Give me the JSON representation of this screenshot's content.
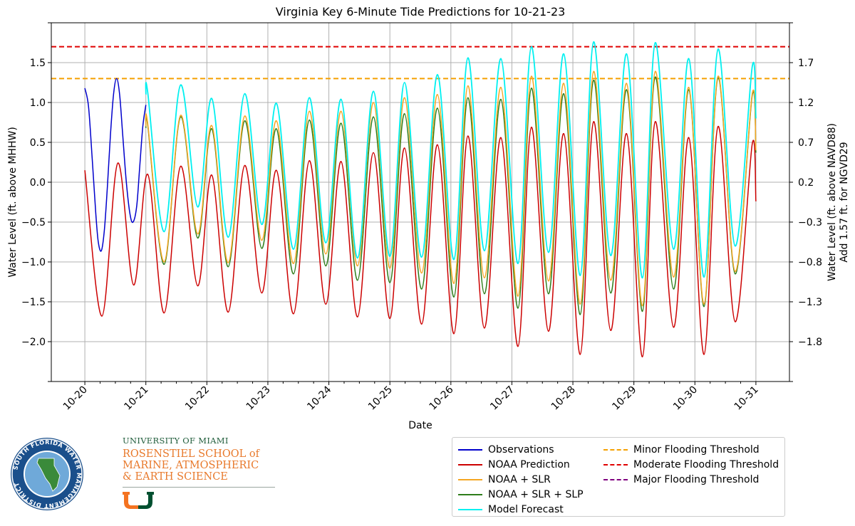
{
  "chart_data": {
    "type": "line",
    "title": "Virginia Key 6-Minute Tide Predictions for 10-21-23",
    "xlabel": "Date",
    "ylabel": "Water Level (ft. above MHHW)",
    "ylabel_right_line1": "Water Level (ft. above NAVD88)",
    "ylabel_right_line2": "Add 1.57 ft. for NGVD29",
    "x_tick_labels": [
      "10-20",
      "10-21",
      "10-22",
      "10-23",
      "10-24",
      "10-25",
      "10-26",
      "10-27",
      "10-28",
      "10-29",
      "10-30",
      "10-31"
    ],
    "xlim_days": [
      -0.55,
      11.55
    ],
    "ylim": [
      -2.5,
      2.0
    ],
    "y_ticks": [
      -2.0,
      -1.5,
      -1.0,
      -0.5,
      0.0,
      0.5,
      1.0,
      1.5
    ],
    "y_tick_labels": [
      "−2.0",
      "−1.5",
      "−1.0",
      "−0.5",
      "0.0",
      "0.5",
      "1.0",
      "1.5"
    ],
    "y_ticks_right": [
      -1.8,
      -1.3,
      -0.8,
      -0.3,
      0.2,
      0.7,
      1.2,
      1.7
    ],
    "grid": true,
    "legend_placement": "below-right",
    "series": [
      {
        "name": "Observations",
        "color": "#0000cc",
        "style": "solid",
        "x": [
          0.0,
          0.06,
          0.12,
          0.18,
          0.22,
          0.27,
          0.32,
          0.37,
          0.42,
          0.47,
          0.52,
          0.57,
          0.62,
          0.68,
          0.74,
          0.79,
          0.85,
          0.9,
          0.95,
          1.0
        ],
        "y": [
          1.18,
          0.95,
          0.3,
          -0.4,
          -0.75,
          -0.86,
          -0.6,
          -0.05,
          0.6,
          1.1,
          1.3,
          1.1,
          0.6,
          0.0,
          -0.4,
          -0.5,
          -0.3,
          0.2,
          0.7,
          0.97
        ]
      },
      {
        "name": "NOAA Prediction",
        "color": "#cc0000",
        "style": "solid",
        "x": [
          0.0,
          0.28,
          0.54,
          0.8,
          1.03,
          1.3,
          1.57,
          1.85,
          2.08,
          2.35,
          2.62,
          2.9,
          3.14,
          3.42,
          3.68,
          3.95,
          4.2,
          4.47,
          4.73,
          5.0,
          5.24,
          5.52,
          5.78,
          6.05,
          6.28,
          6.55,
          6.82,
          7.1,
          7.32,
          7.6,
          7.85,
          8.12,
          8.34,
          8.62,
          8.88,
          9.14,
          9.35,
          9.65,
          9.9,
          10.15,
          10.38,
          10.66,
          10.94,
          11.0
        ],
        "y": [
          0.15,
          -1.68,
          0.24,
          -1.29,
          0.1,
          -1.64,
          0.2,
          -1.3,
          0.09,
          -1.63,
          0.21,
          -1.39,
          0.15,
          -1.65,
          0.27,
          -1.53,
          0.26,
          -1.69,
          0.37,
          -1.71,
          0.43,
          -1.78,
          0.47,
          -1.9,
          0.58,
          -1.83,
          0.56,
          -2.06,
          0.69,
          -1.87,
          0.61,
          -2.16,
          0.76,
          -1.86,
          0.61,
          -2.19,
          0.76,
          -1.82,
          0.56,
          -2.16,
          0.7,
          -1.75,
          0.48,
          -0.24
        ]
      },
      {
        "name": "NOAA + SLR",
        "color": "#f5a623",
        "style": "solid",
        "x": [
          1.0,
          1.03,
          1.3,
          1.57,
          1.85,
          2.08,
          2.35,
          2.62,
          2.9,
          3.14,
          3.42,
          3.68,
          3.95,
          4.2,
          4.47,
          4.73,
          5.0,
          5.24,
          5.52,
          5.78,
          6.05,
          6.28,
          6.55,
          6.82,
          7.1,
          7.32,
          7.6,
          7.85,
          8.12,
          8.34,
          8.62,
          8.88,
          9.14,
          9.35,
          9.65,
          9.9,
          10.15,
          10.38,
          10.66,
          10.94,
          11.0
        ],
        "y": [
          0.7,
          0.74,
          -1.0,
          0.84,
          -0.65,
          0.71,
          -1.01,
          0.83,
          -0.73,
          0.77,
          -1.02,
          0.89,
          -0.9,
          0.89,
          -1.05,
          1.0,
          -1.08,
          1.06,
          -1.14,
          1.1,
          -1.27,
          1.21,
          -1.2,
          1.19,
          -1.43,
          1.33,
          -1.24,
          1.24,
          -1.53,
          1.39,
          -1.23,
          1.24,
          -1.55,
          1.39,
          -1.19,
          1.19,
          -1.53,
          1.33,
          -1.12,
          1.11,
          0.4
        ]
      },
      {
        "name": "NOAA + SLR + SLP",
        "color": "#2e7d1a",
        "style": "solid",
        "x": [
          1.0,
          1.03,
          1.3,
          1.57,
          1.85,
          2.08,
          2.35,
          2.62,
          2.9,
          3.14,
          3.42,
          3.68,
          3.95,
          4.2,
          4.47,
          4.73,
          5.0,
          5.24,
          5.52,
          5.78,
          6.05,
          6.28,
          6.55,
          6.82,
          7.1,
          7.32,
          7.6,
          7.85,
          8.12,
          8.34,
          8.62,
          8.88,
          9.14,
          9.35,
          9.65,
          9.9,
          10.15,
          10.38,
          10.66,
          10.94,
          11.0
        ],
        "y": [
          0.68,
          0.72,
          -1.03,
          0.82,
          -0.7,
          0.67,
          -1.06,
          0.77,
          -0.83,
          0.67,
          -1.15,
          0.78,
          -1.05,
          0.74,
          -1.23,
          0.82,
          -1.26,
          0.86,
          -1.34,
          0.93,
          -1.44,
          1.06,
          -1.4,
          1.04,
          -1.58,
          1.18,
          -1.4,
          1.11,
          -1.66,
          1.28,
          -1.39,
          1.16,
          -1.62,
          1.32,
          -1.34,
          1.16,
          -1.56,
          1.31,
          -1.15,
          1.09,
          0.37
        ]
      },
      {
        "name": "Model Forecast",
        "color": "#00f0f0",
        "style": "solid",
        "x": [
          1.0,
          1.03,
          1.3,
          1.57,
          1.85,
          2.08,
          2.35,
          2.62,
          2.9,
          3.14,
          3.42,
          3.68,
          3.95,
          4.2,
          4.47,
          4.73,
          5.0,
          5.24,
          5.52,
          5.78,
          6.05,
          6.28,
          6.55,
          6.82,
          7.1,
          7.32,
          7.6,
          7.85,
          8.12,
          8.34,
          8.62,
          8.88,
          9.14,
          9.35,
          9.65,
          9.9,
          10.15,
          10.38,
          10.66,
          10.94,
          11.0
        ],
        "y": [
          1.1,
          1.13,
          -0.62,
          1.22,
          -0.31,
          1.05,
          -0.69,
          1.11,
          -0.53,
          0.99,
          -0.84,
          1.06,
          -0.76,
          1.04,
          -0.95,
          1.14,
          -0.93,
          1.25,
          -0.94,
          1.35,
          -0.97,
          1.56,
          -0.86,
          1.55,
          -1.02,
          1.7,
          -0.88,
          1.61,
          -1.17,
          1.76,
          -0.92,
          1.61,
          -1.2,
          1.75,
          -0.84,
          1.55,
          -1.19,
          1.67,
          -0.8,
          1.45,
          0.8
        ]
      },
      {
        "name": "Minor Flooding Threshold",
        "color": "#f5a000",
        "style": "dashed",
        "y_const": 1.3
      },
      {
        "name": "Moderate Flooding Threshold",
        "color": "#e00000",
        "style": "dashed",
        "y_const": 1.7
      },
      {
        "name": "Major Flooding Threshold",
        "color": "#800080",
        "style": "dashed"
      }
    ]
  },
  "logos": {
    "sfwmd": "SOUTH FLORIDA WATER MANAGEMENT DISTRICT",
    "um_university": "UNIVERSITY OF MIAMI",
    "um_school_line1": "ROSENSTIEL SCHOOL of",
    "um_school_line2": "MARINE, ATMOSPHERIC",
    "um_school_line3": "& EARTH SCIENCE",
    "um_u_color_left": "#f47321",
    "um_u_color_right": "#005030"
  }
}
